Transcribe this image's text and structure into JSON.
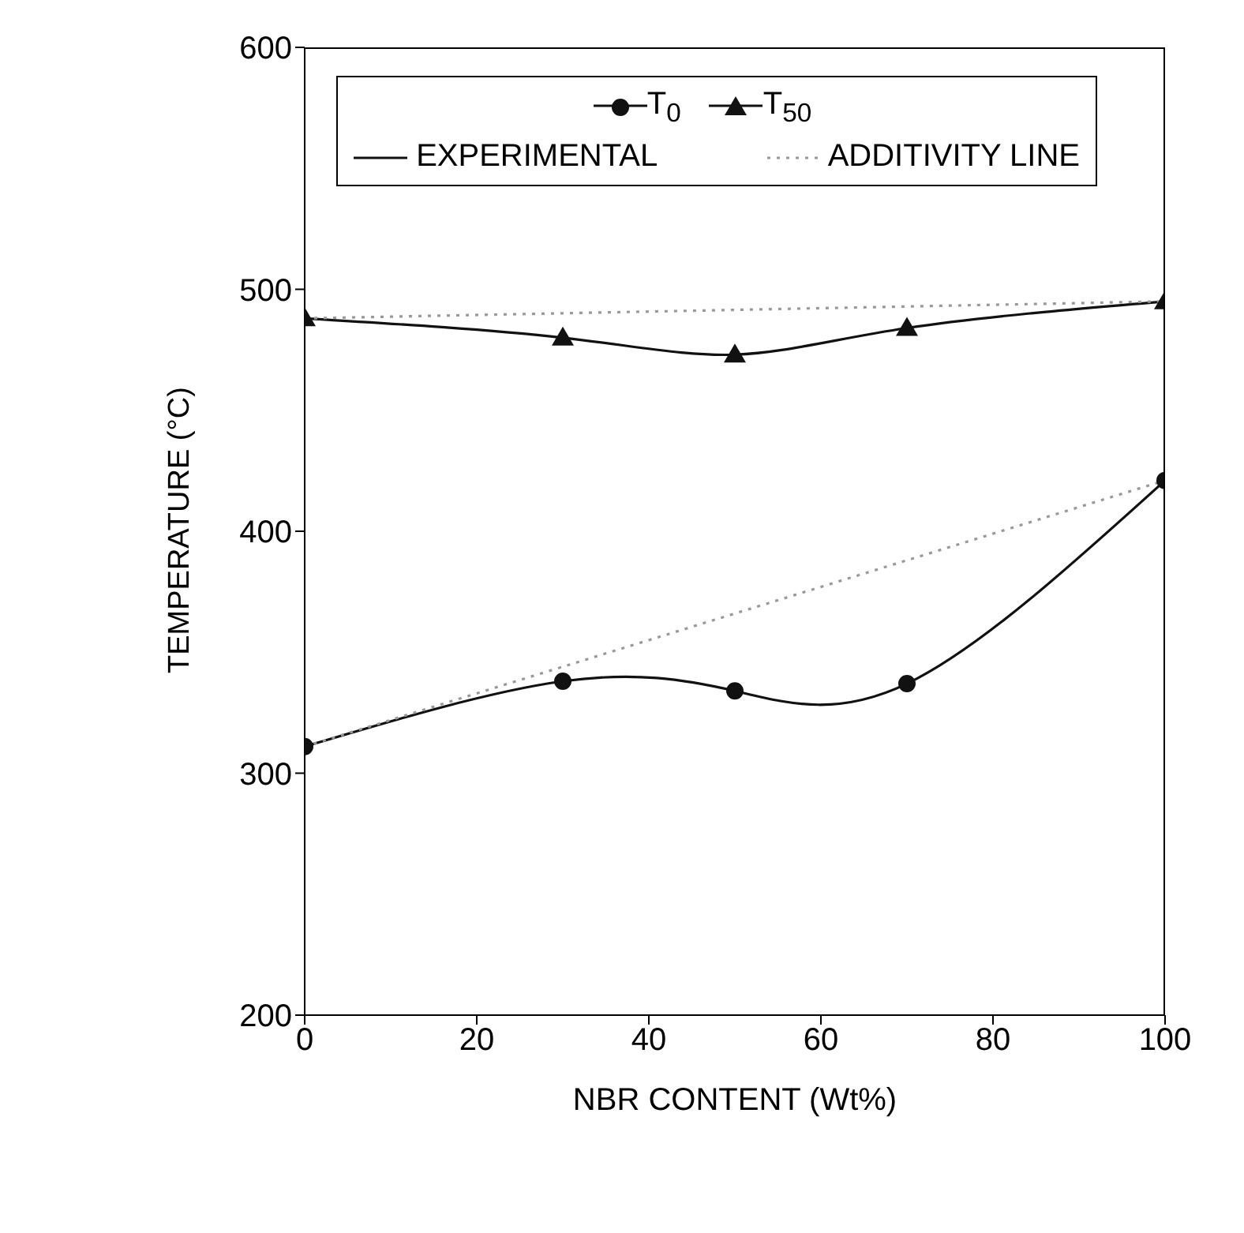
{
  "chart_data": {
    "type": "line",
    "xlabel": "NBR CONTENT (Wt%)",
    "ylabel": "TEMPERATURE (°C)",
    "x": [
      0,
      30,
      50,
      70,
      100
    ],
    "series": [
      {
        "name": "T$_{0}$",
        "color": "#111111",
        "values": [
          311,
          338,
          334,
          337,
          421
        ],
        "marker": "circle",
        "line_style": "solid"
      },
      {
        "name": "T$_{50}$",
        "color": "#111111",
        "values": [
          488,
          480,
          473,
          484,
          495
        ],
        "marker": "triangle",
        "line_style": "solid"
      },
      {
        "name": "ADDITIVITY LINE",
        "color": "#999999",
        "values": [
          311,
          null,
          null,
          null,
          421
        ],
        "marker": "none",
        "line_style": "dotted"
      },
      {
        "color": "#999999",
        "values": [
          488,
          null,
          null,
          null,
          495
        ],
        "marker": "none",
        "line_style": "dotted"
      }
    ],
    "annotations": [
      "EXPERIMENTAL"
    ],
    "xlim": [
      0,
      100
    ],
    "xticks": [
      0,
      20,
      40,
      60,
      80,
      100
    ],
    "ylim": [
      200,
      600
    ],
    "yticks": [
      200,
      300,
      400,
      500,
      600
    ],
    "grid": false,
    "legend": "top"
  }
}
